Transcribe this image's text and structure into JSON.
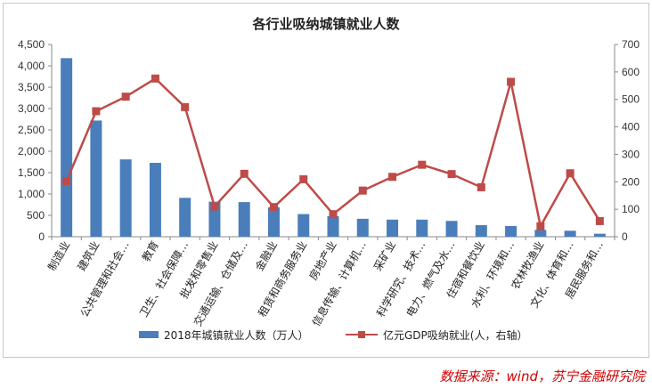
{
  "chart_data": {
    "type": "bar",
    "title": "各行业吸纳城镇就业人数",
    "categories": [
      "制造业",
      "建筑业",
      "公共管理和社会…",
      "教育",
      "卫生、社会保障…",
      "批发和零售业",
      "交通运输、仓储及…",
      "金融业",
      "租赁和商务服务业",
      "房地产业",
      "信息传输、计算机…",
      "采矿业",
      "科学研究、技术…",
      "电力、燃气及水…",
      "住宿和餐饮业",
      "水利、环境和…",
      "农林牧渔业",
      "文化、体育和…",
      "居民服务和…"
    ],
    "series": [
      {
        "name": "2018年城镇就业人数（万人）",
        "type": "bar",
        "axis": "left",
        "color": "#4a7ebb",
        "values": [
          4180,
          2720,
          1810,
          1730,
          910,
          820,
          810,
          690,
          530,
          480,
          420,
          400,
          400,
          370,
          270,
          250,
          160,
          140,
          70
        ]
      },
      {
        "name": "亿元GDP吸纳就业(人，右轴）",
        "type": "line",
        "axis": "right",
        "color": "#be4b48",
        "values": [
          202,
          457,
          510,
          576,
          472,
          110,
          229,
          108,
          209,
          82,
          168,
          218,
          262,
          228,
          180,
          564,
          38,
          231,
          57
        ]
      }
    ],
    "y_left": {
      "min": 0,
      "max": 4500,
      "step": 500,
      "ticks": [
        "0",
        "500",
        "1,000",
        "1,500",
        "2,000",
        "2,500",
        "3,000",
        "3,500",
        "4,000",
        "4,500"
      ]
    },
    "y_right": {
      "min": 0,
      "max": 700,
      "step": 100,
      "ticks": [
        "0",
        "100",
        "200",
        "300",
        "400",
        "500",
        "600",
        "700"
      ]
    },
    "grid": false,
    "legend_position": "bottom"
  },
  "source": "数据来源：wind，苏宁金融研究院"
}
